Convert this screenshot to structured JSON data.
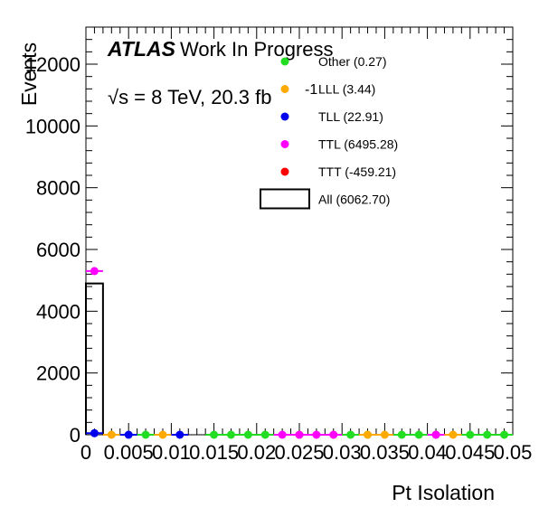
{
  "chart_data": {
    "type": "scatter",
    "title": "",
    "xlabel": "Pt Isolation",
    "ylabel": "Events",
    "xlim": [
      0,
      0.05
    ],
    "ylim": [
      0,
      13200
    ],
    "xticks": [
      0,
      0.005,
      0.01,
      0.015,
      0.02,
      0.025,
      0.03,
      0.035,
      0.04,
      0.045,
      0.05
    ],
    "xtick_labels": [
      "0",
      "0.005",
      "0.01",
      "0.015",
      "0.02",
      "0.025",
      "0.03",
      "0.035",
      "0.04",
      "0.045",
      "0.05"
    ],
    "yticks": [
      0,
      2000,
      4000,
      6000,
      8000,
      10000,
      12000
    ],
    "ytick_labels": [
      "0",
      "2000",
      "4000",
      "6000",
      "8000",
      "10000",
      "12000"
    ],
    "bin_width": 0.002,
    "atlas_label": "ATLAS",
    "atlas_sublabel": "Work In Progress",
    "energy_text": "√s = 8 TeV, 20.3 fb",
    "energy_sup": "-1",
    "legend_position": "top-right",
    "series": [
      {
        "name": "Other (0.27)",
        "color": "#22dd22",
        "points": [
          [
            0.007,
            0
          ],
          [
            0.015,
            0
          ],
          [
            0.017,
            0
          ],
          [
            0.019,
            0
          ],
          [
            0.021,
            0
          ],
          [
            0.031,
            0
          ],
          [
            0.033,
            0
          ],
          [
            0.037,
            0
          ],
          [
            0.039,
            0
          ],
          [
            0.041,
            0
          ],
          [
            0.045,
            0
          ],
          [
            0.047,
            0
          ],
          [
            0.049,
            0
          ]
        ]
      },
      {
        "name": "LLL (3.44)",
        "color": "#ffaa00",
        "points": [
          [
            0.003,
            0
          ],
          [
            0.009,
            0
          ],
          [
            0.025,
            0
          ],
          [
            0.029,
            0
          ],
          [
            0.033,
            0
          ],
          [
            0.035,
            0
          ],
          [
            0.043,
            0
          ]
        ]
      },
      {
        "name": "TLL (22.91)",
        "color": "#0000ee",
        "points": [
          [
            0.001,
            50
          ],
          [
            0.005,
            0
          ],
          [
            0.011,
            0
          ]
        ]
      },
      {
        "name": "TTL (6495.28)",
        "color": "#ff00ff",
        "points": [
          [
            0.001,
            5300
          ],
          [
            0.023,
            0
          ],
          [
            0.025,
            0
          ],
          [
            0.027,
            0
          ],
          [
            0.029,
            0
          ],
          [
            0.041,
            0
          ]
        ]
      },
      {
        "name": "TTT (-459.21)",
        "color": "#ff0000",
        "points": []
      }
    ],
    "all_histogram": {
      "name": "All (6062.70)",
      "bins": [
        [
          0,
          0.002,
          4900
        ]
      ]
    }
  }
}
